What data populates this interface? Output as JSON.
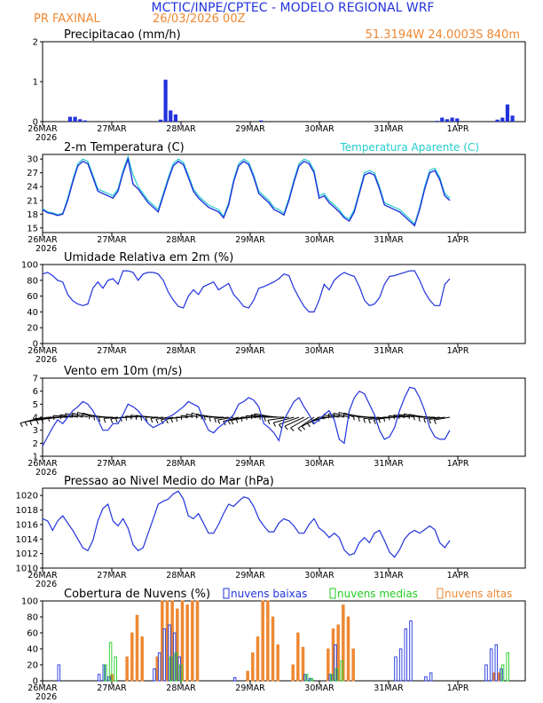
{
  "header": {
    "title": "MCTIC/INPE/CPTEC - MODELO REGIONAL WRF",
    "location": "PR FAXINAL",
    "run": "26/03/2026 00Z",
    "coords": "51.3194W  24.0003S  840m"
  },
  "colors": {
    "blue": "#2233dd",
    "cyan": "#22cccc",
    "orange": "#ee8833",
    "green": "#22cc22",
    "black": "#000000"
  },
  "x_tick_labels": [
    "26MAR",
    "27MAR",
    "28MAR",
    "29MAR",
    "30MAR",
    "31MAR",
    "1APR"
  ],
  "year_label": "2026",
  "chart_data": [
    {
      "type": "bar",
      "id": "precip",
      "title": "Precipitacao (mm/h)",
      "ylim": [
        0,
        2
      ],
      "yticks": [
        0,
        1,
        2
      ],
      "x": [
        5,
        6,
        7,
        8,
        23,
        24,
        25,
        26,
        43,
        78,
        79,
        80,
        81,
        82,
        90,
        91,
        92,
        93
      ],
      "values": [
        0.12,
        0.12,
        0.06,
        0.03,
        0.05,
        1.05,
        0.28,
        0.18,
        0.03,
        0.02,
        0.1,
        0.06,
        0.1,
        0.08,
        0.05,
        0.1,
        0.43,
        0.15
      ]
    },
    {
      "type": "line",
      "id": "temp",
      "title": "2-m Temperatura (C)",
      "legend": [
        "Temperatura Aparente (C)"
      ],
      "ylim": [
        14,
        31
      ],
      "yticks": [
        15,
        18,
        21,
        24,
        27,
        30
      ],
      "series": [
        {
          "name": "2-m Temperatura (C)",
          "values": [
            19,
            18.3,
            18.1,
            17.7,
            18,
            21,
            25,
            28.5,
            29.5,
            29,
            26,
            23,
            22.5,
            22,
            21.5,
            23,
            27,
            30,
            24.5,
            23.5,
            22,
            20.5,
            19.5,
            18.5,
            22,
            25.5,
            28.5,
            29.5,
            28.8,
            26,
            23,
            21.5,
            20.5,
            19.5,
            19,
            18.5,
            17.2,
            20,
            25,
            28.5,
            29.5,
            28.8,
            26,
            22.5,
            21.5,
            20.5,
            19,
            18.5,
            17.8,
            21,
            25,
            28.5,
            29.5,
            29,
            27,
            21.5,
            22,
            20.5,
            19.5,
            18.5,
            17.2,
            16.5,
            18.5,
            22.5,
            26.5,
            27,
            26.5,
            23.5,
            20,
            19.5,
            19,
            18.5,
            17.5,
            16.5,
            15.5,
            19,
            23.5,
            27,
            27.5,
            25.5,
            22,
            21
          ]
        },
        {
          "name": "Temperatura Aparente (C)",
          "values": [
            19.2,
            18.5,
            18.3,
            17.9,
            18.2,
            21.5,
            25.5,
            29,
            30,
            29.5,
            26.5,
            23.5,
            23,
            22.5,
            22,
            23.5,
            27.5,
            30.5,
            26.5,
            24,
            22.5,
            21,
            20,
            19,
            22.5,
            26,
            29,
            30,
            29.3,
            26.5,
            23.5,
            22,
            21,
            20,
            19.5,
            19,
            17.5,
            20.5,
            25.5,
            29,
            30,
            29.3,
            26.5,
            23,
            22,
            21,
            19.5,
            19,
            18.2,
            21.5,
            25.5,
            29,
            30,
            29.5,
            27.5,
            22,
            22.5,
            21,
            20,
            19,
            17.5,
            17,
            19,
            23,
            27,
            27.5,
            27,
            24,
            20.5,
            20,
            19.5,
            19,
            18,
            17,
            15.8,
            19.5,
            24,
            27.5,
            28,
            26,
            22.5,
            21.5
          ]
        }
      ]
    },
    {
      "type": "line",
      "id": "rh",
      "title": "Umidade Relativa em 2m (%)",
      "ylim": [
        0,
        100
      ],
      "yticks": [
        0,
        20,
        40,
        60,
        80,
        100
      ],
      "series": [
        {
          "name": "Umidade Relativa em 2m (%)",
          "values": [
            88,
            90,
            86,
            80,
            78,
            62,
            54,
            50,
            48,
            50,
            70,
            78,
            70,
            80,
            82,
            75,
            92,
            92,
            90,
            80,
            88,
            90,
            90,
            88,
            80,
            65,
            55,
            47,
            45,
            60,
            68,
            62,
            72,
            75,
            78,
            68,
            72,
            76,
            62,
            55,
            47,
            45,
            55,
            70,
            72,
            75,
            78,
            82,
            88,
            86,
            70,
            58,
            47,
            40,
            40,
            55,
            75,
            68,
            80,
            86,
            90,
            87,
            85,
            72,
            55,
            48,
            50,
            58,
            75,
            85,
            86,
            88,
            90,
            92,
            92,
            80,
            65,
            55,
            48,
            48,
            75,
            82
          ]
        }
      ]
    },
    {
      "type": "line",
      "id": "wind",
      "title": "Vento em 10m (m/s)",
      "ylim": [
        1,
        7
      ],
      "yticks": [
        1,
        2,
        3,
        4,
        5,
        6,
        7
      ],
      "series": [
        {
          "name": "Vento em 10m (m/s)",
          "values": [
            1.8,
            2.5,
            3.2,
            3.8,
            3.5,
            4,
            4.5,
            4.8,
            5.2,
            5,
            4.5,
            3.8,
            3,
            3,
            3.5,
            3.5,
            4.2,
            5,
            4.8,
            4.5,
            4,
            3.5,
            3.2,
            3.4,
            3.6,
            4,
            4.2,
            4.5,
            4.8,
            5.2,
            5,
            4.8,
            3.8,
            3,
            2.8,
            3.2,
            3.5,
            3.8,
            4.2,
            5,
            5.2,
            5.5,
            5.3,
            4.8,
            3.5,
            3.2,
            2.8,
            2.2,
            3.8,
            4.5,
            5.2,
            5.5,
            4.8,
            4.2,
            3.5,
            3.8,
            4.2,
            4.5,
            3.8,
            2.3,
            2,
            4.5,
            5.5,
            6,
            5.8,
            5,
            4.2,
            3,
            2.3,
            2.5,
            3.2,
            4.5,
            5.5,
            6.3,
            6.2,
            5.5,
            4.5,
            3.2,
            2.5,
            2.3,
            2.3,
            3
          ]
        }
      ],
      "barbs_dir_deg": [
        -15,
        -12,
        -10,
        -8,
        -5,
        0,
        5,
        8,
        12,
        15,
        18,
        15,
        10,
        5,
        0,
        -5,
        -8,
        -5,
        0,
        5,
        10,
        8,
        5,
        0,
        -5,
        -10,
        -12,
        -10,
        -5,
        0,
        8,
        15,
        20,
        15,
        10,
        5,
        0,
        -5,
        -10,
        -15,
        -12,
        -10,
        -5,
        0,
        5,
        8,
        10,
        5,
        0,
        -8,
        -15,
        -20,
        -25,
        -30,
        -35,
        -28,
        -20,
        -10,
        0,
        8,
        12,
        15,
        18,
        15,
        10,
        5,
        0,
        -5,
        -8,
        -10,
        -5,
        0,
        5,
        8,
        10,
        12,
        10,
        5,
        0,
        -5,
        -8,
        -10
      ],
      "barbs_len": [
        26,
        26,
        26,
        24,
        24,
        22,
        22,
        20,
        20,
        18,
        18,
        18,
        16,
        16,
        16,
        16,
        14,
        14,
        14,
        14,
        14,
        14,
        14,
        14,
        14,
        14,
        14,
        14,
        14,
        14,
        14,
        14,
        14,
        14,
        14,
        16,
        16,
        16,
        18,
        18,
        18,
        20,
        20,
        20,
        20,
        20,
        22,
        22,
        22,
        24,
        24,
        24,
        24,
        24,
        22,
        22,
        20,
        20,
        18,
        18,
        18,
        18,
        18,
        18,
        18,
        18,
        18,
        18,
        18,
        18,
        18,
        18,
        18,
        18,
        18,
        18,
        18,
        18,
        18,
        18,
        18,
        18
      ]
    },
    {
      "type": "line",
      "id": "pres",
      "title": "Pressao ao Nivel Medio do Mar (hPa)",
      "ylim": [
        1010,
        1021
      ],
      "yticks": [
        1010,
        1012,
        1014,
        1016,
        1018,
        1020
      ],
      "series": [
        {
          "name": "Pressao ao Nivel Medio do Mar (hPa)",
          "values": [
            1016.8,
            1016.5,
            1015.2,
            1016.5,
            1017.2,
            1016.2,
            1015.2,
            1014,
            1012.8,
            1012.4,
            1013.8,
            1016.5,
            1018.2,
            1018.8,
            1016.5,
            1015.8,
            1016.8,
            1015.5,
            1013.2,
            1012.4,
            1012.8,
            1014.8,
            1016.8,
            1018.8,
            1019.2,
            1019.5,
            1020.2,
            1020.6,
            1019.5,
            1017.2,
            1016.8,
            1017.5,
            1016.2,
            1014.8,
            1014.8,
            1016,
            1017.5,
            1018.8,
            1018.5,
            1019.2,
            1019.8,
            1019.6,
            1018.5,
            1016.8,
            1015.8,
            1015,
            1015,
            1016.2,
            1016.8,
            1016.5,
            1015.8,
            1014.8,
            1014.8,
            1016,
            1016.8,
            1015.5,
            1015,
            1014.2,
            1014.8,
            1014.2,
            1012.5,
            1011.8,
            1012,
            1013.5,
            1014.2,
            1013.5,
            1014.8,
            1015.2,
            1013.8,
            1012.2,
            1011.5,
            1012.5,
            1014,
            1014.8,
            1015.2,
            1014.8,
            1015.3,
            1015.8,
            1015.3,
            1013.5,
            1012.8,
            1013.8
          ]
        }
      ]
    },
    {
      "type": "bar",
      "id": "clouds",
      "title": "Cobertura de Nuvens (%)",
      "legend": [
        "nuvens baixas",
        "nuvens medias",
        "nuvens altas"
      ],
      "ylim": [
        0,
        100
      ],
      "yticks": [
        0,
        20,
        40,
        60,
        80,
        100
      ],
      "series": [
        {
          "name": "nuvens baixas",
          "x": [
            3,
            11,
            12,
            13,
            22,
            23,
            24,
            25,
            26,
            27,
            38,
            52,
            53,
            57,
            58,
            70,
            71,
            72,
            73,
            76,
            77,
            88,
            89,
            90,
            91
          ],
          "values": [
            20,
            8,
            20,
            5,
            15,
            35,
            65,
            70,
            60,
            30,
            4,
            8,
            3,
            8,
            45,
            30,
            40,
            65,
            75,
            5,
            10,
            20,
            40,
            45,
            15
          ]
        },
        {
          "name": "nuvens medias",
          "x": [
            12,
            13,
            14,
            25,
            26,
            27,
            52,
            53,
            57,
            58,
            59,
            91,
            92
          ],
          "values": [
            20,
            48,
            30,
            30,
            35,
            20,
            8,
            3,
            8,
            15,
            25,
            20,
            35
          ]
        },
        {
          "name": "nuvens altas",
          "x": [
            13,
            16,
            17,
            18,
            19,
            22,
            23,
            24,
            25,
            26,
            27,
            28,
            29,
            30,
            40,
            41,
            42,
            43,
            44,
            45,
            46,
            49,
            50,
            51,
            56,
            57,
            58,
            59,
            60,
            61,
            89,
            90
          ],
          "values": [
            8,
            30,
            60,
            82,
            55,
            30,
            100,
            100,
            100,
            90,
            100,
            95,
            100,
            100,
            12,
            35,
            55,
            100,
            100,
            80,
            45,
            20,
            60,
            42,
            40,
            65,
            70,
            95,
            80,
            40,
            10,
            10
          ]
        }
      ]
    }
  ]
}
